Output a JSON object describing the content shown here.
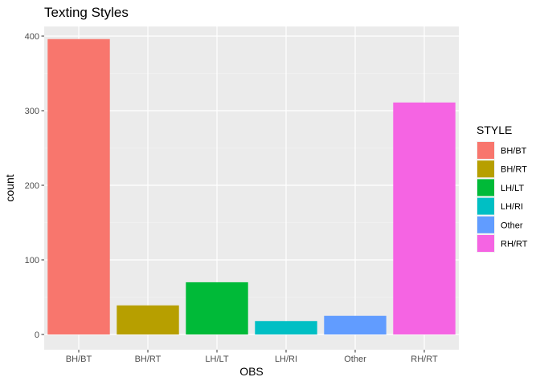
{
  "chart_data": {
    "type": "bar",
    "title": "Texting Styles",
    "xlabel": "OBS",
    "ylabel": "count",
    "categories": [
      "BH/BT",
      "BH/RT",
      "LH/LT",
      "LH/RI",
      "Other",
      "RH/RT"
    ],
    "values": [
      396,
      39,
      70,
      18,
      25,
      311
    ],
    "colors": [
      "#F8766D",
      "#B79F00",
      "#00BA38",
      "#00BFC4",
      "#619CFF",
      "#F564E3"
    ],
    "ylim": [
      0,
      420
    ],
    "yticks": [
      0,
      100,
      200,
      300,
      400
    ],
    "grid": true,
    "legend": {
      "title": "STYLE",
      "position": "right",
      "entries": [
        "BH/BT",
        "BH/RT",
        "LH/LT",
        "LH/RI",
        "Other",
        "RH/RT"
      ]
    }
  }
}
